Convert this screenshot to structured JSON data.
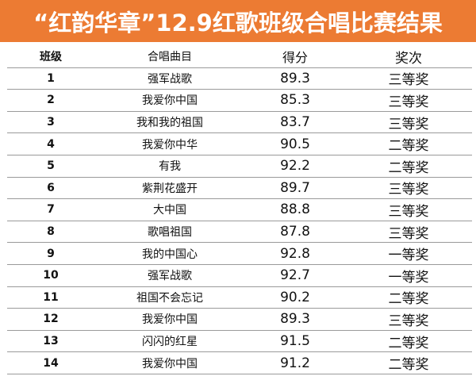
{
  "title": "“红韵华章”12.9红歌班级合唱比赛结果",
  "colors": {
    "title_background": "#ec7b33",
    "title_text": "#ffffff",
    "row_rule": "#9a9a9a"
  },
  "table": {
    "headers": {
      "class": "班级",
      "song": "合唱曲目",
      "score": "得分",
      "award": "奖次"
    },
    "rows": [
      {
        "class": "1",
        "song": "强军战歌",
        "score": "89.3",
        "award": "三等奖"
      },
      {
        "class": "2",
        "song": "我爱你中国",
        "score": "85.3",
        "award": "三等奖"
      },
      {
        "class": "3",
        "song": "我和我的祖国",
        "score": "83.7",
        "award": "三等奖"
      },
      {
        "class": "4",
        "song": "我爱你中华",
        "score": "90.5",
        "award": "二等奖"
      },
      {
        "class": "5",
        "song": "有我",
        "score": "92.2",
        "award": "二等奖"
      },
      {
        "class": "6",
        "song": "紫荆花盛开",
        "score": "89.7",
        "award": "三等奖"
      },
      {
        "class": "7",
        "song": "大中国",
        "score": "88.8",
        "award": "三等奖"
      },
      {
        "class": "8",
        "song": "歌唱祖国",
        "score": "87.8",
        "award": "三等奖"
      },
      {
        "class": "9",
        "song": "我的中国心",
        "score": "92.8",
        "award": "一等奖"
      },
      {
        "class": "10",
        "song": "强军战歌",
        "score": "92.7",
        "award": "一等奖"
      },
      {
        "class": "11",
        "song": "祖国不会忘记",
        "score": "90.2",
        "award": "二等奖"
      },
      {
        "class": "12",
        "song": "我爱你中国",
        "score": "89.3",
        "award": "三等奖"
      },
      {
        "class": "13",
        "song": "闪闪的红星",
        "score": "91.5",
        "award": "二等奖"
      },
      {
        "class": "14",
        "song": "我爱你中国",
        "score": "91.2",
        "award": "二等奖"
      }
    ]
  }
}
